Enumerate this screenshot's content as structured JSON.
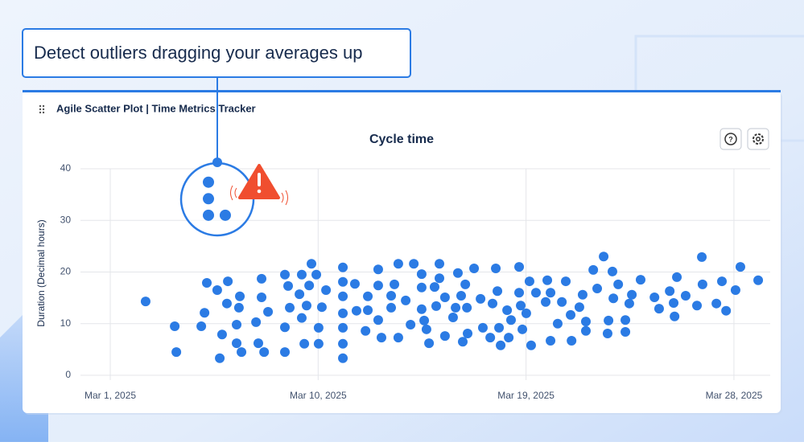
{
  "callout": "Detect outliers dragging your averages up",
  "card_title": "Agile Scatter Plot | Time Metrics Tracker",
  "chart_data": {
    "type": "scatter",
    "title": "Cycle time",
    "y_label": "Duration (Decimal hours)",
    "color": "#2b7be4",
    "grid": true,
    "xlim": [
      -1.29,
      28.57
    ],
    "ylim": [
      0,
      40
    ],
    "xticks": [
      {
        "value": 0,
        "label": "Mar 1, 2025"
      },
      {
        "value": 9,
        "label": "Mar 10, 2025"
      },
      {
        "value": 18,
        "label": "Mar 19, 2025"
      },
      {
        "value": 27,
        "label": "Mar 28, 2025"
      }
    ],
    "yticks": [
      0,
      10,
      20,
      30,
      40
    ],
    "x": [
      1.53,
      2.79,
      2.86,
      3.94,
      4.08,
      4.18,
      4.63,
      4.84,
      4.74,
      5.05,
      5.09,
      5.47,
      5.47,
      5.61,
      5.57,
      5.68,
      6.31,
      6.41,
      6.55,
      6.55,
      6.66,
      6.83,
      7.56,
      7.56,
      7.56,
      7.7,
      7.77,
      8.19,
      8.29,
      8.29,
      8.4,
      8.5,
      8.61,
      8.71,
      8.92,
      9.02,
      9.02,
      9.16,
      9.34,
      10.07,
      10.07,
      10.07,
      10.07,
      10.07,
      10.07,
      10.07,
      10.59,
      10.66,
      11.05,
      11.15,
      11.15,
      11.6,
      11.6,
      11.6,
      11.74,
      12.16,
      12.16,
      12.3,
      12.47,
      12.47,
      12.79,
      13.0,
      13.14,
      13.48,
      13.48,
      13.48,
      13.59,
      13.69,
      13.8,
      14.04,
      14.11,
      14.25,
      14.25,
      14.49,
      14.49,
      14.84,
      14.95,
      15.05,
      15.19,
      15.26,
      15.37,
      15.44,
      15.47,
      15.75,
      16.03,
      16.13,
      16.45,
      16.55,
      16.69,
      16.76,
      16.83,
      16.9,
      17.18,
      17.25,
      17.35,
      17.7,
      17.7,
      17.77,
      17.84,
      18.01,
      18.15,
      18.22,
      18.43,
      18.85,
      18.92,
      19.06,
      19.06,
      19.37,
      19.55,
      19.72,
      19.93,
      19.97,
      20.31,
      20.45,
      20.59,
      20.59,
      20.91,
      21.08,
      21.36,
      21.53,
      21.57,
      21.74,
      21.78,
      21.99,
      22.3,
      22.3,
      22.47,
      22.58,
      22.96,
      23.56,
      23.76,
      24.22,
      24.39,
      24.43,
      24.53,
      24.91,
      25.4,
      25.61,
      25.64,
      26.24,
      26.48,
      26.66,
      27.07,
      27.28,
      28.05,
      4.25,
      4.25,
      4.25,
      4.98
    ],
    "values": [
      14.3,
      9.5,
      4.5,
      9.5,
      12.1,
      17.9,
      16.5,
      7.9,
      3.3,
      13.9,
      18.2,
      9.8,
      6.2,
      15.3,
      13.1,
      4.5,
      10.3,
      6.2,
      15.1,
      18.7,
      4.5,
      12.3,
      9.3,
      19.5,
      4.5,
      17.3,
      13.1,
      15.7,
      19.5,
      11.1,
      6.1,
      13.5,
      17.4,
      21.6,
      19.5,
      9.2,
      6.1,
      13.2,
      16.5,
      20.9,
      18.1,
      15.3,
      12.0,
      9.2,
      6.1,
      3.3,
      17.7,
      12.5,
      8.6,
      12.6,
      15.3,
      20.5,
      17.4,
      10.7,
      7.3,
      15.4,
      13.1,
      17.6,
      21.6,
      7.3,
      14.5,
      9.8,
      21.6,
      19.6,
      17.0,
      12.8,
      10.6,
      8.9,
      6.2,
      17.1,
      13.4,
      21.6,
      18.8,
      15.1,
      7.6,
      11.2,
      13.1,
      19.8,
      15.4,
      6.5,
      17.6,
      13.1,
      8.1,
      20.7,
      14.8,
      9.2,
      7.3,
      13.9,
      20.7,
      16.3,
      9.2,
      5.8,
      12.6,
      7.3,
      10.7,
      16.0,
      21.0,
      13.5,
      8.9,
      12.0,
      18.2,
      5.8,
      16.0,
      14.2,
      18.4,
      16.0,
      6.7,
      10.0,
      14.2,
      18.2,
      11.7,
      6.7,
      13.2,
      15.6,
      8.6,
      10.4,
      20.4,
      16.8,
      23.0,
      8.1,
      10.6,
      20.1,
      14.9,
      17.6,
      10.7,
      8.4,
      13.9,
      15.6,
      18.5,
      15.1,
      12.9,
      16.3,
      14.0,
      11.4,
      19.0,
      15.4,
      13.5,
      22.9,
      17.6,
      13.9,
      18.2,
      12.5,
      16.5,
      21.0,
      18.4,
      37.4,
      34.2,
      31.0,
      31.0
    ]
  }
}
